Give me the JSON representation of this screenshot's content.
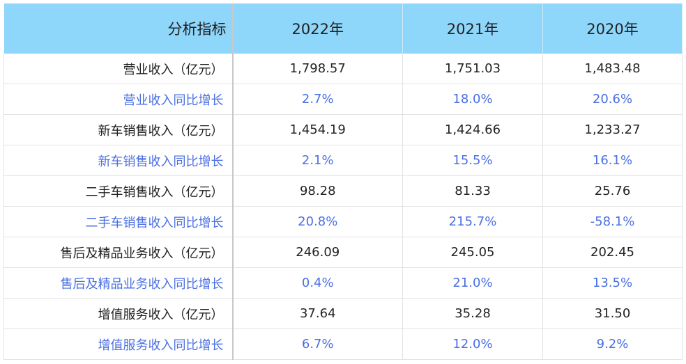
{
  "table": {
    "header": [
      "分析指标",
      "2022年",
      "2021年",
      "2020年"
    ],
    "rows": [
      [
        "营业收入（亿元）",
        "1,798.57",
        "1,751.03",
        "1,483.48"
      ],
      [
        "营业收入同比增长",
        "2.7%",
        "18.0%",
        "20.6%"
      ],
      [
        "新车销售收入（亿元）",
        "1,454.19",
        "1,424.66",
        "1,233.27"
      ],
      [
        "新车销售收入同比增长",
        "2.1%",
        "15.5%",
        "16.1%"
      ],
      [
        "二手车销售收入（亿元）",
        "98.28",
        "81.33",
        "25.76"
      ],
      [
        "二手车销售收入同比增长",
        "20.8%",
        "215.7%",
        "-58.1%"
      ],
      [
        "售后及精品业务收入（亿元）",
        "246.09",
        "245.05",
        "202.45"
      ],
      [
        "售后及精品业务收入同比增长",
        "0.4%",
        "21.0%",
        "13.5%"
      ],
      [
        "增值服务收入（亿元）",
        "37.64",
        "35.28",
        "31.50"
      ],
      [
        "增值服务收入同比增长",
        "6.7%",
        "12.0%",
        "9.2%"
      ]
    ]
  }
}
